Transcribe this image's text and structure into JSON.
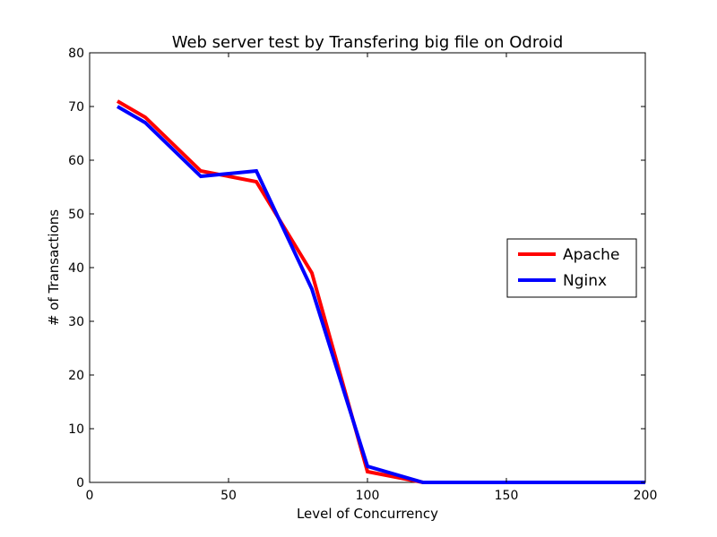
{
  "chart_data": {
    "type": "line",
    "title": "Web server test by Transfering big file on Odroid",
    "xlabel": "Level of Concurrency",
    "ylabel": "# of Transactions",
    "xlim": [
      0,
      200
    ],
    "ylim": [
      0,
      80
    ],
    "xticks": [
      0,
      50,
      100,
      150,
      200
    ],
    "yticks": [
      0,
      10,
      20,
      30,
      40,
      50,
      60,
      70,
      80
    ],
    "grid": false,
    "legend_position": "center-right",
    "series": [
      {
        "name": "Apache",
        "color": "#ff0000",
        "x": [
          10,
          20,
          40,
          60,
          80,
          100,
          120,
          140,
          160,
          180,
          200
        ],
        "y": [
          71,
          68,
          58,
          56,
          39,
          2,
          0,
          0,
          0,
          0,
          0
        ]
      },
      {
        "name": "Nginx",
        "color": "#0000ff",
        "x": [
          10,
          20,
          40,
          60,
          80,
          100,
          120,
          140,
          160,
          180,
          200
        ],
        "y": [
          70,
          67,
          57,
          58,
          36,
          3,
          0,
          0,
          0,
          0,
          0
        ]
      }
    ]
  }
}
